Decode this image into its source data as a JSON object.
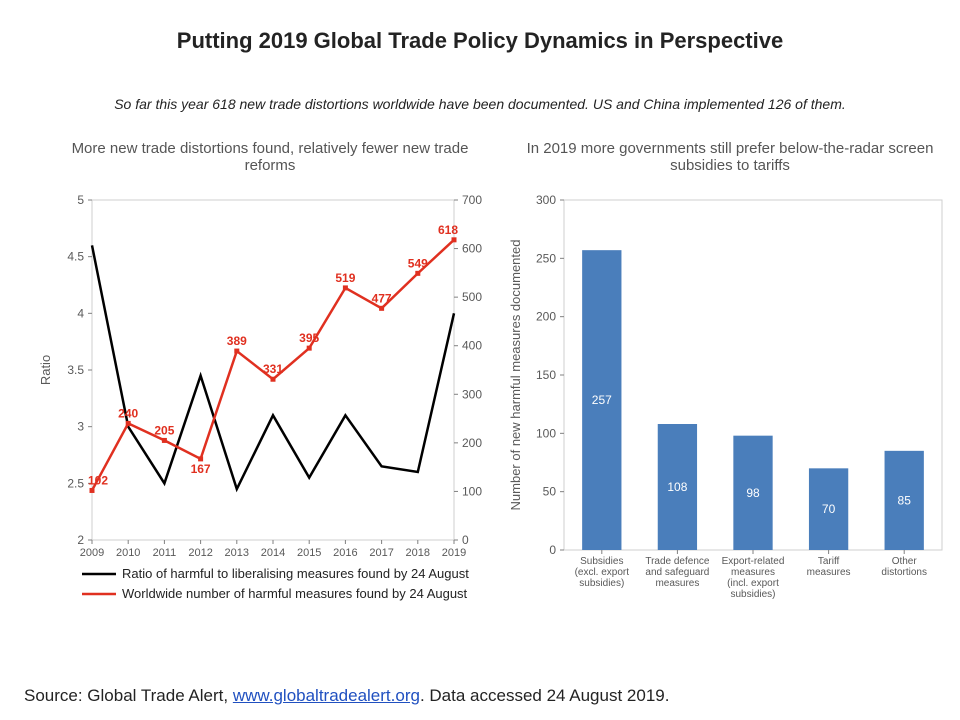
{
  "title": {
    "text": "Putting 2019 Global Trade Policy Dynamics in Perspective",
    "fontsize": 22
  },
  "subtitle": {
    "text": "So far this year 618 new trade distortions worldwide  have been documented. US and China implemented 126 of them.",
    "fontsize": 14
  },
  "left_chart": {
    "type": "line-dual-axis",
    "title": "More new trade distortions found, relatively fewer new trade reforms",
    "title_fontsize": 15,
    "x": {
      "categories": [
        "2009",
        "2010",
        "2011",
        "2012",
        "2013",
        "2014",
        "2015",
        "2016",
        "2017",
        "2018",
        "2019"
      ],
      "tick_fontsize": 11
    },
    "y_left": {
      "title": "Ratio",
      "min": 2,
      "max": 5,
      "step": 0.5,
      "tick_fontsize": 12
    },
    "y_right": {
      "min": 0,
      "max": 700,
      "step": 100,
      "tick_fontsize": 12
    },
    "series": {
      "ratio": {
        "name": "Ratio of harmful to liberalising measures found by 24 August",
        "values": [
          4.6,
          3.0,
          2.5,
          3.45,
          2.45,
          3.1,
          2.55,
          3.1,
          2.65,
          2.6,
          4.0
        ],
        "color": "#000000",
        "line_width": 2.5
      },
      "harmful": {
        "name": "Worldwide number of harmful measures found by 24 August",
        "values": [
          102,
          240,
          205,
          167,
          389,
          331,
          395,
          519,
          477,
          549,
          618
        ],
        "labels": [
          "102",
          "240",
          "205",
          "167",
          "389",
          "331",
          "395",
          "519",
          "477",
          "549",
          "618"
        ],
        "color": "#e03020",
        "line_width": 2.5,
        "marker": "square",
        "marker_size": 5
      }
    },
    "legend": [
      {
        "key": "ratio",
        "color": "#000000"
      },
      {
        "key": "harmful",
        "color": "#e03020"
      }
    ],
    "background_color": "#ffffff",
    "border_color": "#cfcfcf"
  },
  "right_chart": {
    "type": "bar",
    "title": "In 2019 more governments still prefer below-the-radar screen subsidies to tariffs",
    "title_fontsize": 15,
    "y": {
      "title": "Number of new harmful measures documented",
      "min": 0,
      "max": 300,
      "step": 50,
      "tick_fontsize": 12
    },
    "categories": [
      "Subsidies (excl. export subsidies)",
      "Trade defence and safeguard measures",
      "Export-related measures (incl. export subsidies)",
      "Tariff measures",
      "Other distortions"
    ],
    "category_lines": [
      [
        "Subsidies",
        "(excl. export",
        "subsidies)"
      ],
      [
        "Trade defence",
        "and safeguard",
        "measures"
      ],
      [
        "Export-related",
        "measures",
        "(incl. export",
        "subsidies)"
      ],
      [
        "Tariff",
        "measures"
      ],
      [
        "Other",
        "distortions"
      ]
    ],
    "values": [
      257,
      108,
      98,
      70,
      85
    ],
    "labels": [
      "257",
      "108",
      "98",
      "70",
      "85"
    ],
    "bar_color": "#4a7ebb",
    "bar_width": 0.52,
    "background_color": "#ffffff",
    "border_color": "#cfcfcf",
    "tick_fontsize_x": 10
  },
  "source": {
    "prefix": "Source: Global Trade Alert, ",
    "link_text": "www.globaltradealert.org",
    "suffix": ". Data accessed 24 August 2019.",
    "fontsize": 17
  }
}
